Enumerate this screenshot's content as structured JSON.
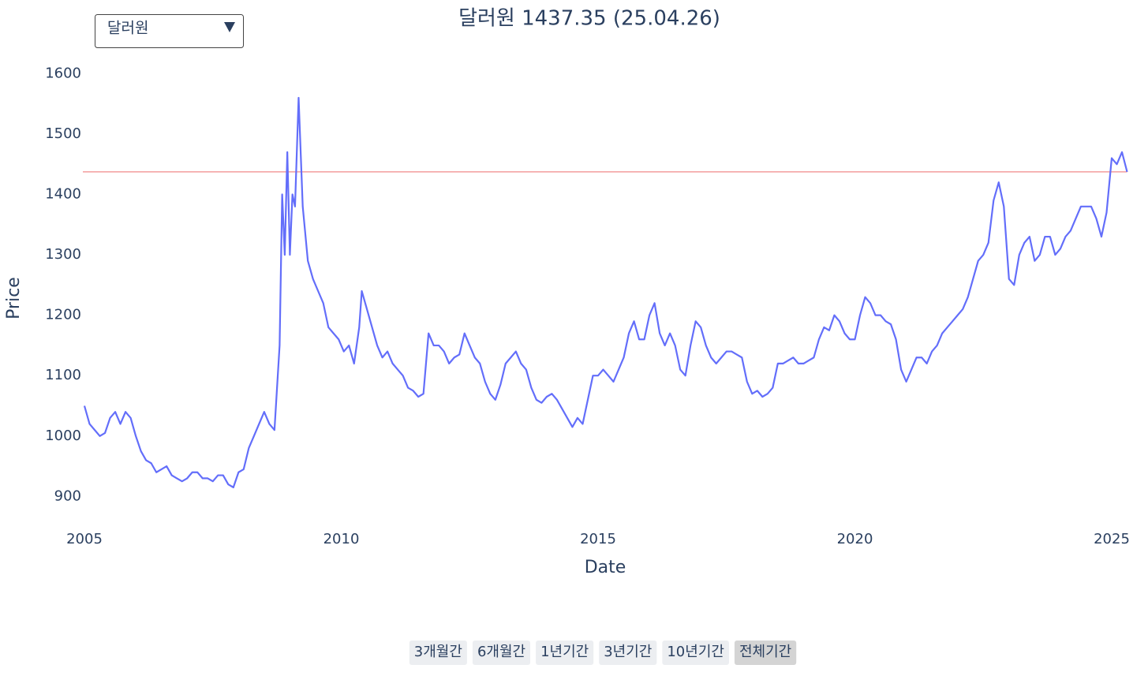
{
  "chart_data": {
    "type": "line",
    "title": "달러원 1437.35 (25.04.26)",
    "xlabel": "Date",
    "ylabel": "Price",
    "dropdown": {
      "label": "달러원"
    },
    "range_buttons": {
      "labels": [
        "3개월간",
        "6개월간",
        "1년기간",
        "3년기간",
        "10년기간",
        "전체기간"
      ],
      "active": 5
    },
    "hline": {
      "value": 1437.35,
      "color": "#f08a8a"
    },
    "color": "#636efa",
    "grid": false,
    "xlim": [
      2005,
      2025.3
    ],
    "xticks": [
      2005,
      2010,
      2015,
      2020,
      2025
    ],
    "ylim": [
      860,
      1620
    ],
    "yticks": [
      900,
      1000,
      1100,
      1200,
      1300,
      1400,
      1500,
      1600
    ],
    "x": [
      2005.0,
      2005.1,
      2005.2,
      2005.3,
      2005.4,
      2005.5,
      2005.6,
      2005.7,
      2005.8,
      2005.9,
      2006.0,
      2006.1,
      2006.2,
      2006.3,
      2006.4,
      2006.5,
      2006.6,
      2006.7,
      2006.8,
      2006.9,
      2007.0,
      2007.1,
      2007.2,
      2007.3,
      2007.4,
      2007.5,
      2007.6,
      2007.7,
      2007.8,
      2007.9,
      2008.0,
      2008.1,
      2008.2,
      2008.3,
      2008.4,
      2008.5,
      2008.6,
      2008.7,
      2008.8,
      2008.85,
      2008.9,
      2008.95,
      2009.0,
      2009.05,
      2009.1,
      2009.17,
      2009.25,
      2009.35,
      2009.45,
      2009.55,
      2009.65,
      2009.75,
      2009.85,
      2009.95,
      2010.05,
      2010.15,
      2010.25,
      2010.35,
      2010.4,
      2010.5,
      2010.6,
      2010.7,
      2010.8,
      2010.9,
      2011.0,
      2011.1,
      2011.2,
      2011.3,
      2011.4,
      2011.5,
      2011.6,
      2011.7,
      2011.8,
      2011.9,
      2012.0,
      2012.1,
      2012.2,
      2012.3,
      2012.4,
      2012.5,
      2012.6,
      2012.7,
      2012.8,
      2012.9,
      2013.0,
      2013.1,
      2013.2,
      2013.3,
      2013.4,
      2013.5,
      2013.6,
      2013.7,
      2013.8,
      2013.9,
      2014.0,
      2014.1,
      2014.2,
      2014.3,
      2014.4,
      2014.5,
      2014.6,
      2014.7,
      2014.8,
      2014.9,
      2015.0,
      2015.1,
      2015.2,
      2015.3,
      2015.4,
      2015.5,
      2015.6,
      2015.7,
      2015.8,
      2015.9,
      2016.0,
      2016.1,
      2016.2,
      2016.3,
      2016.4,
      2016.5,
      2016.6,
      2016.7,
      2016.8,
      2016.9,
      2017.0,
      2017.1,
      2017.2,
      2017.3,
      2017.4,
      2017.5,
      2017.6,
      2017.7,
      2017.8,
      2017.9,
      2018.0,
      2018.1,
      2018.2,
      2018.3,
      2018.4,
      2018.5,
      2018.6,
      2018.7,
      2018.8,
      2018.9,
      2019.0,
      2019.1,
      2019.2,
      2019.3,
      2019.4,
      2019.5,
      2019.6,
      2019.7,
      2019.8,
      2019.9,
      2020.0,
      2020.1,
      2020.2,
      2020.3,
      2020.4,
      2020.5,
      2020.6,
      2020.7,
      2020.8,
      2020.9,
      2021.0,
      2021.1,
      2021.2,
      2021.3,
      2021.4,
      2021.5,
      2021.6,
      2021.7,
      2021.8,
      2021.9,
      2022.0,
      2022.1,
      2022.2,
      2022.3,
      2022.4,
      2022.5,
      2022.6,
      2022.7,
      2022.8,
      2022.9,
      2023.0,
      2023.1,
      2023.2,
      2023.3,
      2023.4,
      2023.5,
      2023.6,
      2023.7,
      2023.8,
      2023.9,
      2024.0,
      2024.1,
      2024.2,
      2024.3,
      2024.4,
      2024.5,
      2024.6,
      2024.7,
      2024.8,
      2024.9,
      2025.0,
      2025.1,
      2025.2,
      2025.3
    ],
    "values": [
      1050,
      1020,
      1010,
      1000,
      1005,
      1030,
      1040,
      1020,
      1040,
      1030,
      1000,
      975,
      960,
      955,
      940,
      945,
      950,
      935,
      930,
      925,
      930,
      940,
      940,
      930,
      930,
      925,
      935,
      935,
      920,
      915,
      940,
      945,
      980,
      1000,
      1020,
      1040,
      1020,
      1010,
      1150,
      1400,
      1300,
      1470,
      1300,
      1400,
      1380,
      1560,
      1380,
      1290,
      1260,
      1240,
      1220,
      1180,
      1170,
      1160,
      1140,
      1150,
      1120,
      1180,
      1240,
      1210,
      1180,
      1150,
      1130,
      1140,
      1120,
      1110,
      1100,
      1080,
      1075,
      1065,
      1070,
      1170,
      1150,
      1150,
      1140,
      1120,
      1130,
      1135,
      1170,
      1150,
      1130,
      1120,
      1090,
      1070,
      1060,
      1085,
      1120,
      1130,
      1140,
      1120,
      1110,
      1080,
      1060,
      1055,
      1065,
      1070,
      1060,
      1045,
      1030,
      1015,
      1030,
      1020,
      1060,
      1100,
      1100,
      1110,
      1100,
      1090,
      1110,
      1130,
      1170,
      1190,
      1160,
      1160,
      1200,
      1220,
      1170,
      1150,
      1170,
      1150,
      1110,
      1100,
      1150,
      1190,
      1180,
      1150,
      1130,
      1120,
      1130,
      1140,
      1140,
      1135,
      1130,
      1090,
      1070,
      1075,
      1065,
      1070,
      1080,
      1120,
      1120,
      1125,
      1130,
      1120,
      1120,
      1125,
      1130,
      1160,
      1180,
      1175,
      1200,
      1190,
      1170,
      1160,
      1160,
      1200,
      1230,
      1220,
      1200,
      1200,
      1190,
      1185,
      1160,
      1110,
      1090,
      1110,
      1130,
      1130,
      1120,
      1140,
      1150,
      1170,
      1180,
      1190,
      1200,
      1210,
      1230,
      1260,
      1290,
      1300,
      1320,
      1390,
      1420,
      1380,
      1260,
      1250,
      1300,
      1320,
      1330,
      1290,
      1300,
      1330,
      1330,
      1300,
      1310,
      1330,
      1340,
      1360,
      1380,
      1380,
      1380,
      1360,
      1330,
      1370,
      1460,
      1450,
      1470,
      1437.35
    ]
  }
}
